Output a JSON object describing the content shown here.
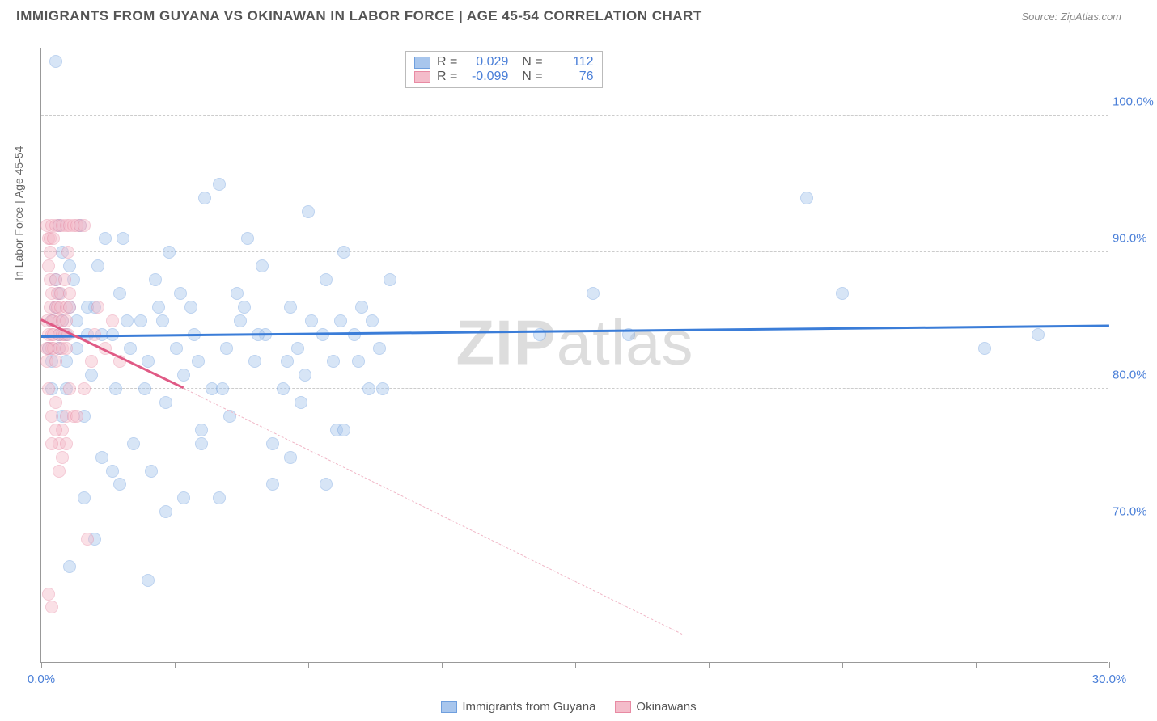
{
  "title": "IMMIGRANTS FROM GUYANA VS OKINAWAN IN LABOR FORCE | AGE 45-54 CORRELATION CHART",
  "source": "Source: ZipAtlas.com",
  "ylabel": "In Labor Force | Age 45-54",
  "watermark_a": "ZIP",
  "watermark_b": "atlas",
  "chart": {
    "type": "scatter",
    "xlim": [
      0,
      30
    ],
    "ylim": [
      60,
      105
    ],
    "xticks": [
      0,
      3.75,
      7.5,
      11.25,
      15,
      18.75,
      22.5,
      26.25,
      30
    ],
    "xtick_labels": {
      "0": "0.0%",
      "30": "30.0%"
    },
    "yticks": [
      70,
      80,
      90,
      100
    ],
    "ytick_labels": [
      "70.0%",
      "80.0%",
      "90.0%",
      "100.0%"
    ],
    "grid_color": "#cccccc",
    "background": "#ffffff",
    "point_radius": 8,
    "point_opacity": 0.45,
    "series": [
      {
        "name": "Immigrants from Guyana",
        "color_fill": "#a8c6ed",
        "color_stroke": "#6f9fde",
        "R": "0.029",
        "N": "112",
        "trend": {
          "x1": 0,
          "y1": 83.8,
          "x2": 30,
          "y2": 84.6,
          "color": "#3b7dd8",
          "width": 2.5
        },
        "points": [
          [
            0.5,
            84
          ],
          [
            0.6,
            85
          ],
          [
            0.7,
            82
          ],
          [
            0.8,
            86
          ],
          [
            0.5,
            83
          ],
          [
            0.9,
            88
          ],
          [
            0.6,
            90
          ],
          [
            0.7,
            80
          ],
          [
            1.0,
            85
          ],
          [
            1.1,
            92
          ],
          [
            1.2,
            78
          ],
          [
            1.3,
            84
          ],
          [
            1.5,
            86
          ],
          [
            1.4,
            81
          ],
          [
            1.6,
            89
          ],
          [
            1.7,
            75
          ],
          [
            2.0,
            84
          ],
          [
            2.1,
            80
          ],
          [
            2.2,
            87
          ],
          [
            2.5,
            83
          ],
          [
            2.3,
            91
          ],
          [
            2.6,
            76
          ],
          [
            2.8,
            85
          ],
          [
            3.0,
            82
          ],
          [
            3.2,
            88
          ],
          [
            3.1,
            74
          ],
          [
            3.5,
            79
          ],
          [
            3.4,
            85
          ],
          [
            3.6,
            90
          ],
          [
            3.8,
            83
          ],
          [
            4.0,
            81
          ],
          [
            4.2,
            86
          ],
          [
            4.5,
            77
          ],
          [
            4.3,
            84
          ],
          [
            4.6,
            94
          ],
          [
            4.8,
            80
          ],
          [
            5.0,
            95
          ],
          [
            5.2,
            83
          ],
          [
            5.5,
            87
          ],
          [
            5.3,
            78
          ],
          [
            5.6,
            85
          ],
          [
            5.8,
            91
          ],
          [
            6.0,
            82
          ],
          [
            6.2,
            89
          ],
          [
            6.5,
            76
          ],
          [
            6.3,
            84
          ],
          [
            6.8,
            80
          ],
          [
            7.0,
            86
          ],
          [
            7.2,
            83
          ],
          [
            7.5,
            93
          ],
          [
            7.3,
            79
          ],
          [
            7.6,
            85
          ],
          [
            8.0,
            88
          ],
          [
            8.2,
            82
          ],
          [
            8.5,
            90
          ],
          [
            8.3,
            77
          ],
          [
            8.8,
            84
          ],
          [
            9.0,
            86
          ],
          [
            9.2,
            80
          ],
          [
            9.5,
            83
          ],
          [
            0.8,
            67
          ],
          [
            3.5,
            71
          ],
          [
            3.0,
            66
          ],
          [
            1.2,
            72
          ],
          [
            1.5,
            69
          ],
          [
            2.2,
            73
          ],
          [
            0.4,
            104
          ],
          [
            1.8,
            91
          ],
          [
            2.0,
            74
          ],
          [
            0.3,
            85
          ],
          [
            0.4,
            88
          ],
          [
            0.2,
            83
          ],
          [
            0.3,
            80
          ],
          [
            0.5,
            92
          ],
          [
            0.6,
            78
          ],
          [
            0.4,
            86
          ],
          [
            0.7,
            84
          ],
          [
            0.8,
            89
          ],
          [
            0.3,
            82
          ],
          [
            0.5,
            87
          ],
          [
            6.5,
            73
          ],
          [
            5.0,
            72
          ],
          [
            7.0,
            75
          ],
          [
            8.0,
            73
          ],
          [
            8.5,
            77
          ],
          [
            4.0,
            72
          ],
          [
            4.5,
            76
          ],
          [
            14.0,
            84
          ],
          [
            15.5,
            87
          ],
          [
            16.5,
            84
          ],
          [
            21.5,
            94
          ],
          [
            22.5,
            87
          ],
          [
            26.5,
            83
          ],
          [
            28.0,
            84
          ],
          [
            1.0,
            83
          ],
          [
            1.3,
            86
          ],
          [
            1.7,
            84
          ],
          [
            2.4,
            85
          ],
          [
            2.9,
            80
          ],
          [
            3.3,
            86
          ],
          [
            3.9,
            87
          ],
          [
            4.4,
            82
          ],
          [
            5.1,
            80
          ],
          [
            5.7,
            86
          ],
          [
            6.1,
            84
          ],
          [
            6.9,
            82
          ],
          [
            7.4,
            81
          ],
          [
            7.9,
            84
          ],
          [
            8.4,
            85
          ],
          [
            8.9,
            82
          ],
          [
            9.3,
            85
          ],
          [
            9.6,
            80
          ],
          [
            9.8,
            88
          ]
        ]
      },
      {
        "name": "Okinawans",
        "color_fill": "#f4bcca",
        "color_stroke": "#e88aa3",
        "R": "-0.099",
        "N": "76",
        "trend_solid": {
          "x1": 0,
          "y1": 85.0,
          "x2": 4.0,
          "y2": 80.0,
          "color": "#e05a85",
          "width": 2.5
        },
        "trend_dash": {
          "x1": 4.0,
          "y1": 80.0,
          "x2": 18.0,
          "y2": 62.0,
          "color": "#f0b6c6",
          "width": 1
        },
        "points": [
          [
            0.15,
            85
          ],
          [
            0.2,
            84
          ],
          [
            0.25,
            86
          ],
          [
            0.2,
            83
          ],
          [
            0.3,
            87
          ],
          [
            0.15,
            82
          ],
          [
            0.25,
            88
          ],
          [
            0.3,
            84
          ],
          [
            0.35,
            85
          ],
          [
            0.2,
            89
          ],
          [
            0.3,
            83
          ],
          [
            0.4,
            86
          ],
          [
            0.35,
            84
          ],
          [
            0.25,
            90
          ],
          [
            0.4,
            82
          ],
          [
            0.3,
            85
          ],
          [
            0.45,
            87
          ],
          [
            0.35,
            83
          ],
          [
            0.4,
            88
          ],
          [
            0.5,
            84
          ],
          [
            0.45,
            86
          ],
          [
            0.5,
            85
          ],
          [
            0.55,
            87
          ],
          [
            0.5,
            83
          ],
          [
            0.6,
            84
          ],
          [
            0.55,
            86
          ],
          [
            0.6,
            85
          ],
          [
            0.65,
            88
          ],
          [
            0.6,
            83
          ],
          [
            0.7,
            86
          ],
          [
            0.65,
            84
          ],
          [
            0.7,
            85
          ],
          [
            0.75,
            90
          ],
          [
            0.7,
            83
          ],
          [
            0.8,
            86
          ],
          [
            0.75,
            84
          ],
          [
            0.8,
            87
          ],
          [
            0.15,
            92
          ],
          [
            0.2,
            91
          ],
          [
            0.3,
            92
          ],
          [
            0.25,
            91
          ],
          [
            0.4,
            92
          ],
          [
            0.35,
            91
          ],
          [
            0.5,
            92
          ],
          [
            0.6,
            92
          ],
          [
            0.7,
            92
          ],
          [
            0.8,
            92
          ],
          [
            0.9,
            92
          ],
          [
            1.0,
            92
          ],
          [
            1.1,
            92
          ],
          [
            1.2,
            92
          ],
          [
            0.2,
            80
          ],
          [
            0.3,
            78
          ],
          [
            0.4,
            79
          ],
          [
            0.5,
            76
          ],
          [
            0.6,
            77
          ],
          [
            0.7,
            78
          ],
          [
            0.3,
            76
          ],
          [
            0.4,
            77
          ],
          [
            0.8,
            80
          ],
          [
            0.5,
            74
          ],
          [
            0.6,
            75
          ],
          [
            0.7,
            76
          ],
          [
            0.9,
            78
          ],
          [
            1.3,
            69
          ],
          [
            0.2,
            65
          ],
          [
            0.3,
            64
          ],
          [
            1.0,
            78
          ],
          [
            1.2,
            80
          ],
          [
            1.4,
            82
          ],
          [
            1.5,
            84
          ],
          [
            1.6,
            86
          ],
          [
            1.8,
            83
          ],
          [
            2.0,
            85
          ],
          [
            2.2,
            82
          ],
          [
            0.15,
            83
          ]
        ]
      }
    ]
  },
  "bottom_legend": [
    {
      "label": "Immigrants from Guyana",
      "fill": "#a8c6ed",
      "stroke": "#6f9fde"
    },
    {
      "label": "Okinawans",
      "fill": "#f4bcca",
      "stroke": "#e88aa3"
    }
  ]
}
